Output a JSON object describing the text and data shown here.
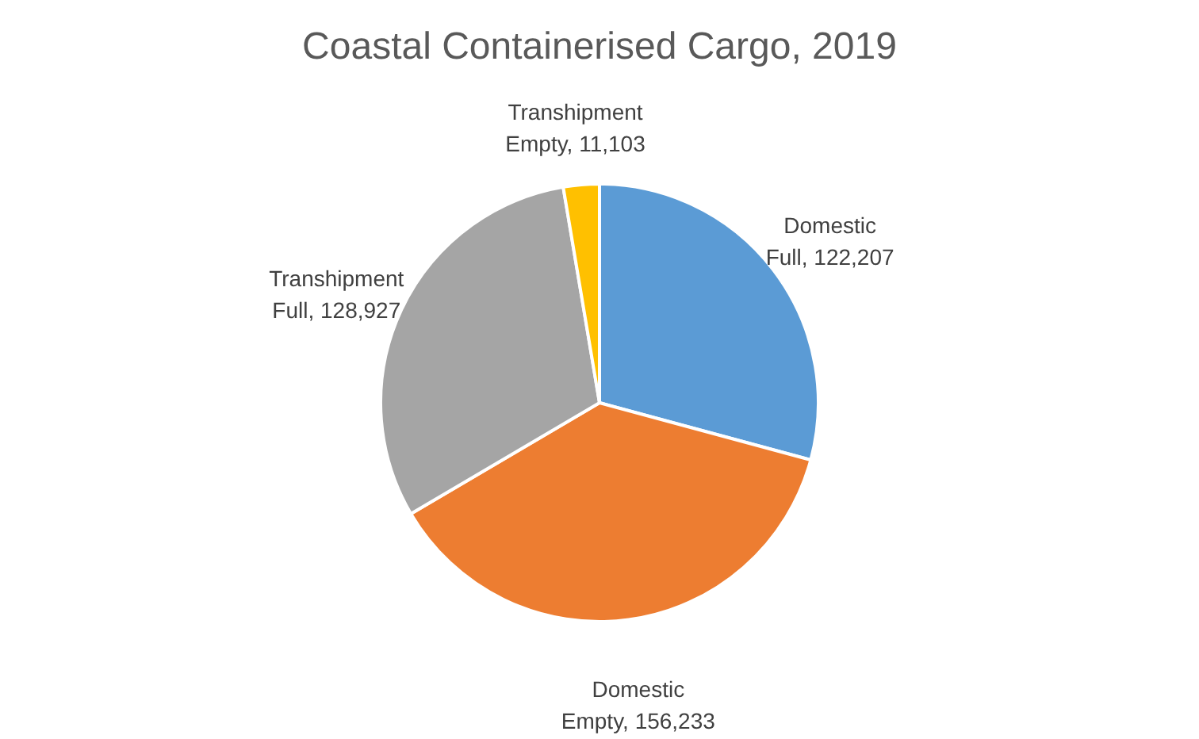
{
  "chart_data": {
    "type": "pie",
    "title": "Coastal Containerised Cargo, 2019",
    "categories": [
      "Domestic Full",
      "Domestic Empty",
      "Transhipment Full",
      "Transhipment Empty"
    ],
    "values": [
      122207,
      156233,
      128927,
      11103
    ],
    "value_labels": [
      "122,207",
      "156,233",
      "128,927",
      "11,103"
    ],
    "colors": [
      "#5b9bd5",
      "#ed7d31",
      "#a5a5a5",
      "#ffc000"
    ],
    "legend": false
  }
}
